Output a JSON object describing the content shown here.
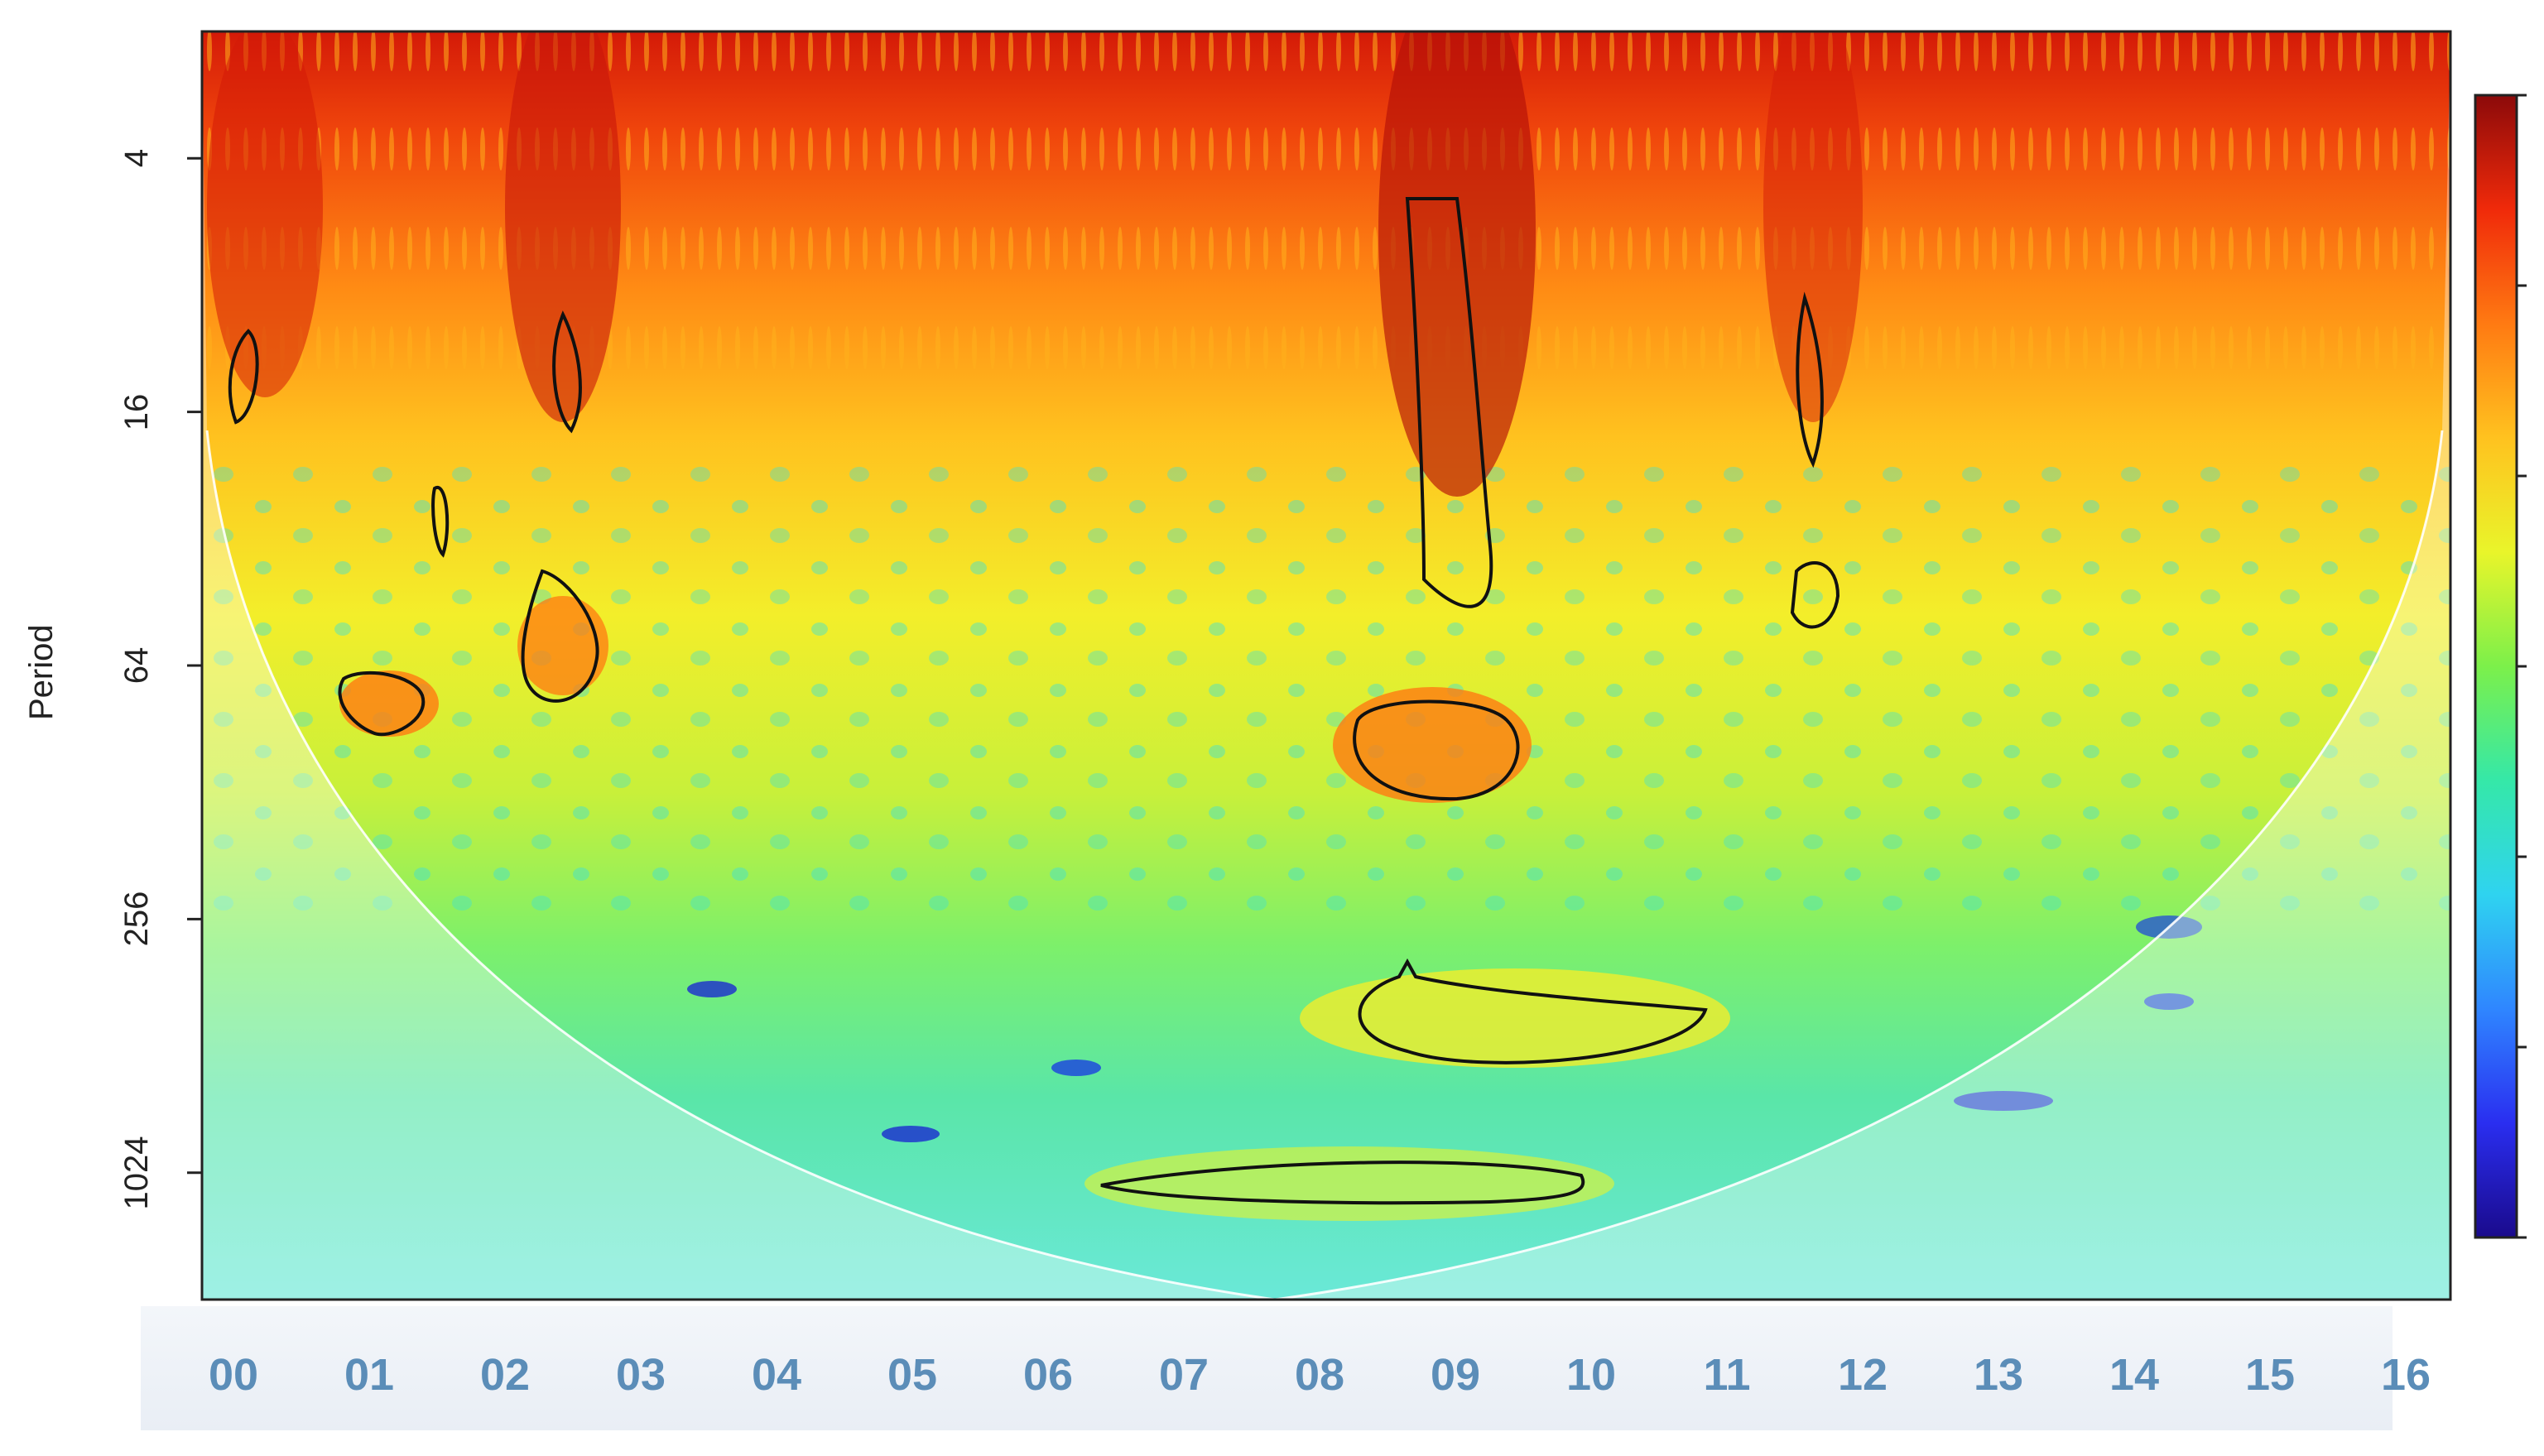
{
  "chart_data": {
    "type": "heatmap",
    "title": "",
    "xlabel": "",
    "ylabel": "Period",
    "x_tick_labels": [
      "00",
      "01",
      "02",
      "03",
      "04",
      "05",
      "06",
      "07",
      "08",
      "09",
      "10",
      "11",
      "12",
      "13",
      "14",
      "15",
      "16"
    ],
    "y_tick_labels": [
      "4",
      "16",
      "64",
      "256",
      "1024"
    ],
    "y_scale": "log2",
    "y_ticks": [
      4,
      16,
      64,
      256,
      1024
    ],
    "ylim": [
      2,
      2048
    ],
    "colorbar": {
      "colors": [
        "#1a0a8c",
        "#2a2ef0",
        "#2f86ff",
        "#2fd3f0",
        "#35e8a8",
        "#7cf04a",
        "#e9f52a",
        "#ffc21f",
        "#ff7a12",
        "#f02a0a",
        "#8c0a0a"
      ]
    },
    "significance_contours": [
      {
        "x_center": 8.85,
        "period": 80
      },
      {
        "x_center": 1.1,
        "period": 60
      },
      {
        "x_center": 2.5,
        "period": 50
      },
      {
        "x_center": 9.5,
        "period": 350
      },
      {
        "x_center": 8.6,
        "period": 950
      }
    ]
  }
}
